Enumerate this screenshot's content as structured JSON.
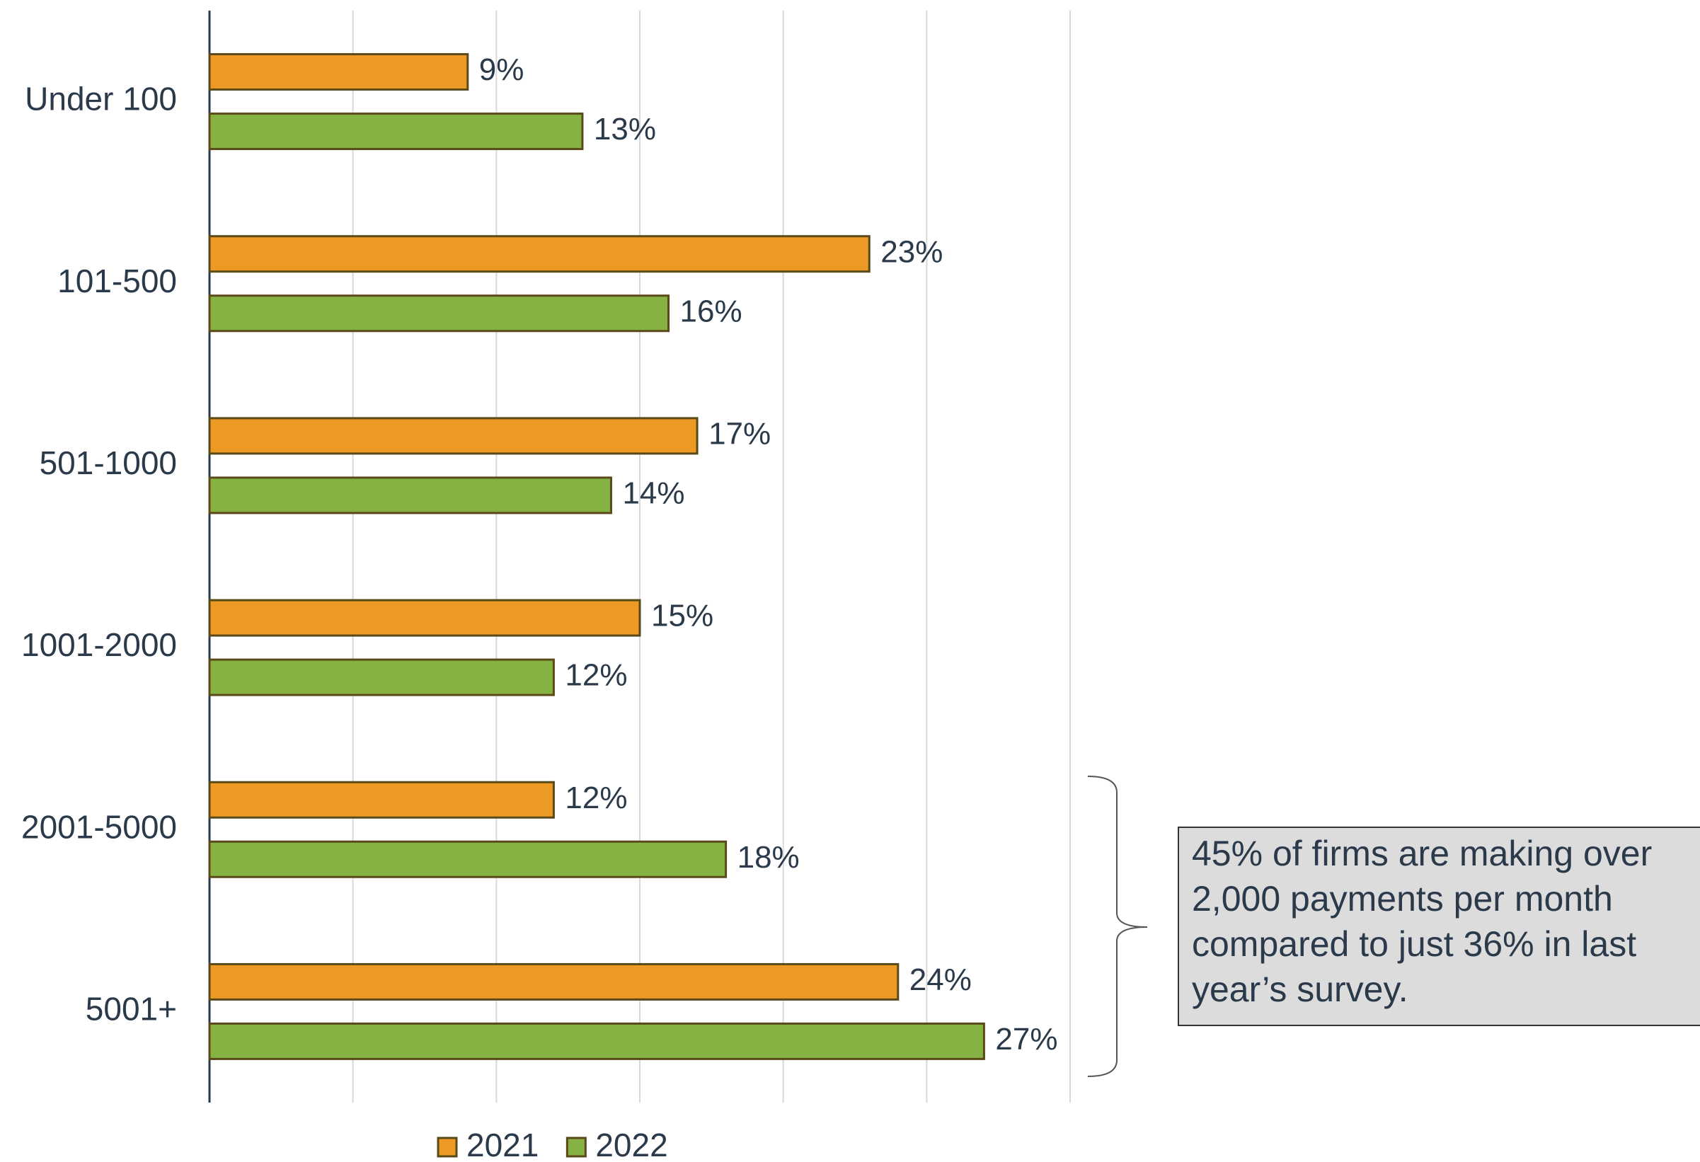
{
  "chart_data": {
    "type": "bar",
    "orientation": "horizontal",
    "categories": [
      "Under 100",
      "101-500",
      "501-1000",
      "1001-2000",
      "2001-5000",
      "5001+"
    ],
    "series": [
      {
        "name": "2021",
        "color": "#ec9a24",
        "values": [
          9,
          23,
          17,
          15,
          12,
          24
        ],
        "value_labels": [
          "9%",
          "23%",
          "17%",
          "15%",
          "12%",
          "24%"
        ]
      },
      {
        "name": "2022",
        "color": "#86b143",
        "values": [
          13,
          16,
          14,
          12,
          18,
          27
        ],
        "value_labels": [
          "13%",
          "16%",
          "14%",
          "12%",
          "18%",
          "27%"
        ]
      }
    ],
    "xlim": [
      0,
      30
    ],
    "xticks": [
      0,
      5,
      10,
      15,
      20,
      25,
      30
    ],
    "grid": true,
    "legend": "bottom",
    "annotation": [
      "45% of firms are making over",
      "2,000 payments per month",
      "compared to just 36% in last",
      "year’s survey."
    ]
  }
}
